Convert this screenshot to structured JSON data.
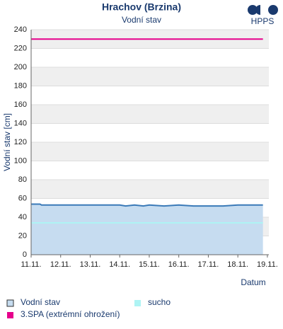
{
  "brand": "HPPS",
  "chart_data": {
    "type": "area",
    "title": "Hrachov (Brzina)",
    "subtitle": "Vodní stav",
    "y_label": "Vodní stav [cm]",
    "x_label": "Datum",
    "x": [
      11,
      11.3,
      11.35,
      12,
      12.5,
      13,
      13.5,
      14,
      14.2,
      14.5,
      14.8,
      15,
      15.5,
      16,
      16.5,
      17,
      17.5,
      18,
      18.5,
      18.85
    ],
    "series": [
      {
        "name": "Vodní stav",
        "color": "#3a7ab8",
        "fill": "#c6dcf0",
        "values": [
          54,
          54,
          53,
          53,
          53,
          53,
          53,
          53,
          52,
          53,
          52,
          53,
          52,
          53,
          52,
          52,
          52,
          53,
          53,
          53
        ]
      }
    ],
    "thresholds": [
      {
        "name": "sucho",
        "value": 34,
        "color": "#aef4f4"
      },
      {
        "name": "3.SPA (extrémní ohrožení)",
        "value": 230,
        "color": "#e6008c"
      }
    ],
    "xlim": [
      11,
      19.05
    ],
    "xticks": [
      {
        "value": 11,
        "label": "11.11."
      },
      {
        "value": 12,
        "label": "12.11."
      },
      {
        "value": 13,
        "label": "13.11."
      },
      {
        "value": 14,
        "label": "14.11."
      },
      {
        "value": 15,
        "label": "15.11."
      },
      {
        "value": 16,
        "label": "16.11."
      },
      {
        "value": 17,
        "label": "17.11."
      },
      {
        "value": 18,
        "label": "18.11."
      },
      {
        "value": 19,
        "label": "19.11."
      }
    ],
    "ylim": [
      0,
      240
    ],
    "yticks": [
      0,
      20,
      40,
      60,
      80,
      100,
      120,
      140,
      160,
      180,
      200,
      220,
      240
    ],
    "grid": true,
    "band_color": "#efefef"
  }
}
